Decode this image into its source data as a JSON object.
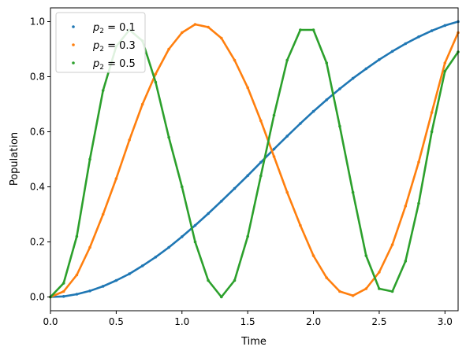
{
  "chart_data": {
    "type": "scatter",
    "xlabel": "Time",
    "ylabel": "Population",
    "xlim": [
      0,
      3.1
    ],
    "ylim": [
      -0.05,
      1.05
    ],
    "xticks": [
      0.0,
      0.5,
      1.0,
      1.5,
      2.0,
      2.5,
      3.0
    ],
    "xtick_labels": [
      "0.0",
      "0.5",
      "1.0",
      "1.5",
      "2.0",
      "2.5",
      "3.0"
    ],
    "yticks": [
      0.0,
      0.2,
      0.4,
      0.6,
      0.8,
      1.0
    ],
    "ytick_labels": [
      "0.0",
      "0.2",
      "0.4",
      "0.6",
      "0.8",
      "1.0"
    ],
    "grid": false,
    "legend_position": "top-left",
    "series": [
      {
        "name": "p2 = 0.1",
        "legend_base": "p",
        "legend_sub": "2",
        "legend_rest": " = 0.1",
        "color": "#1f77b4",
        "x": [
          0.0,
          0.1,
          0.2,
          0.3,
          0.4,
          0.5,
          0.6,
          0.7,
          0.8,
          0.9,
          1.0,
          1.1,
          1.2,
          1.3,
          1.4,
          1.5,
          1.6,
          1.7,
          1.8,
          1.9,
          2.0,
          2.1,
          2.2,
          2.3,
          2.4,
          2.5,
          2.6,
          2.7,
          2.8,
          2.9,
          3.0,
          3.1
        ],
        "y": [
          0.0,
          0.002,
          0.01,
          0.022,
          0.039,
          0.06,
          0.084,
          0.113,
          0.145,
          0.18,
          0.219,
          0.26,
          0.303,
          0.348,
          0.394,
          0.441,
          0.489,
          0.537,
          0.584,
          0.63,
          0.674,
          0.716,
          0.756,
          0.794,
          0.829,
          0.862,
          0.892,
          0.92,
          0.945,
          0.967,
          0.986,
          1.0
        ]
      },
      {
        "name": "p2 = 0.3",
        "legend_base": "p",
        "legend_sub": "2",
        "legend_rest": " = 0.3",
        "color": "#ff7f0e",
        "x": [
          0.0,
          0.1,
          0.2,
          0.3,
          0.4,
          0.5,
          0.6,
          0.7,
          0.8,
          0.9,
          1.0,
          1.1,
          1.2,
          1.3,
          1.4,
          1.5,
          1.6,
          1.7,
          1.8,
          1.9,
          2.0,
          2.1,
          2.2,
          2.3,
          2.4,
          2.5,
          2.6,
          2.7,
          2.8,
          2.9,
          3.0,
          3.1
        ],
        "y": [
          0.0,
          0.02,
          0.08,
          0.18,
          0.3,
          0.43,
          0.57,
          0.7,
          0.81,
          0.9,
          0.96,
          0.99,
          0.98,
          0.94,
          0.86,
          0.76,
          0.64,
          0.51,
          0.38,
          0.26,
          0.15,
          0.07,
          0.02,
          0.005,
          0.03,
          0.09,
          0.19,
          0.33,
          0.49,
          0.67,
          0.85,
          0.96
        ]
      },
      {
        "name": "p2 = 0.5",
        "legend_base": "p",
        "legend_sub": "2",
        "legend_rest": " = 0.5",
        "color": "#2ca02c",
        "x": [
          0.0,
          0.1,
          0.2,
          0.3,
          0.4,
          0.5,
          0.6,
          0.7,
          0.8,
          0.9,
          1.0,
          1.1,
          1.2,
          1.3,
          1.4,
          1.5,
          1.6,
          1.7,
          1.8,
          1.9,
          2.0,
          2.1,
          2.2,
          2.3,
          2.4,
          2.5,
          2.6,
          2.7,
          2.8,
          2.9,
          3.0,
          3.1
        ],
        "y": [
          0.0,
          0.05,
          0.22,
          0.5,
          0.75,
          0.91,
          0.97,
          0.93,
          0.78,
          0.58,
          0.4,
          0.2,
          0.06,
          0.0,
          0.06,
          0.22,
          0.44,
          0.66,
          0.86,
          0.97,
          0.97,
          0.85,
          0.62,
          0.38,
          0.15,
          0.03,
          0.02,
          0.13,
          0.34,
          0.6,
          0.82,
          0.89
        ]
      }
    ]
  }
}
